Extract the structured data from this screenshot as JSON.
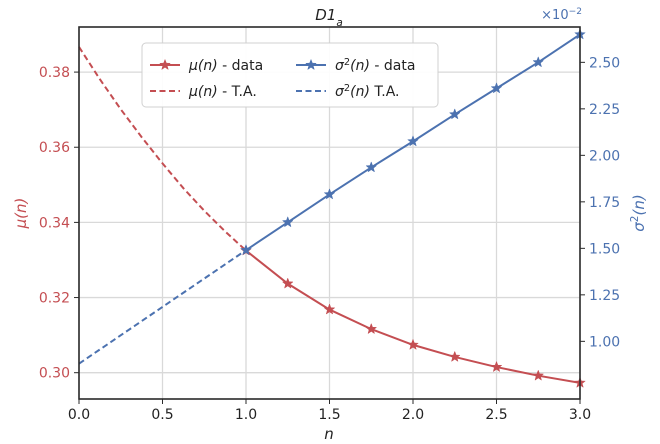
{
  "chart_data": {
    "type": "line",
    "title": "D1_a",
    "xlabel": "n",
    "ylabel_left": "μ(n)",
    "ylabel_right": "σ²(n)",
    "right_axis_multiplier": "×10⁻²",
    "xlim": [
      0.0,
      3.0
    ],
    "ylim_left": [
      0.293,
      0.392
    ],
    "ylim_right": [
      0.69,
      2.69
    ],
    "x_ticks": [
      0.0,
      0.5,
      1.0,
      1.5,
      2.0,
      2.5,
      3.0
    ],
    "x_tick_labels": [
      "0.0",
      "0.5",
      "1.0",
      "1.5",
      "2.0",
      "2.5",
      "3.0"
    ],
    "y_left_ticks": [
      0.3,
      0.32,
      0.34,
      0.36,
      0.38
    ],
    "y_left_tick_labels": [
      "0.30",
      "0.32",
      "0.34",
      "0.36",
      "0.38"
    ],
    "y_right_ticks": [
      1.0,
      1.25,
      1.5,
      1.75,
      2.0,
      2.25,
      2.5
    ],
    "y_right_tick_labels": [
      "1.00",
      "1.25",
      "1.50",
      "1.75",
      "2.00",
      "2.25",
      "2.50"
    ],
    "grid": true,
    "legend_position": "top-center",
    "colors": {
      "mu": "#c44e52",
      "sigma": "#4c72b0"
    },
    "series": [
      {
        "name": "μ(n) - data",
        "axis": "left",
        "style": "solid-star",
        "x": [
          1.0,
          1.25,
          1.5,
          1.75,
          2.0,
          2.25,
          2.5,
          2.75,
          3.0
        ],
        "values": [
          0.3325,
          0.3237,
          0.3168,
          0.3116,
          0.3074,
          0.3042,
          0.3015,
          0.2992,
          0.2973
        ]
      },
      {
        "name": "μ(n) - T.A.",
        "axis": "left",
        "style": "dashed",
        "x": [
          0.0,
          0.125,
          0.25,
          0.375,
          0.5,
          0.625,
          0.75,
          0.875,
          1.0
        ],
        "values": [
          0.3867,
          0.3781,
          0.3701,
          0.3627,
          0.3557,
          0.3491,
          0.3431,
          0.3376,
          0.3325
        ]
      },
      {
        "name": "σ²(n) - data",
        "axis": "right",
        "style": "solid-star",
        "x": [
          1.0,
          1.25,
          1.5,
          1.75,
          2.0,
          2.25,
          2.5,
          2.75,
          3.0
        ],
        "values": [
          1.49,
          1.64,
          1.79,
          1.935,
          2.075,
          2.22,
          2.36,
          2.5,
          2.65
        ]
      },
      {
        "name": "σ²(n) T.A.",
        "axis": "right",
        "style": "dashed",
        "x": [
          0.0,
          1.0
        ],
        "values": [
          0.88,
          1.49
        ]
      }
    ]
  }
}
